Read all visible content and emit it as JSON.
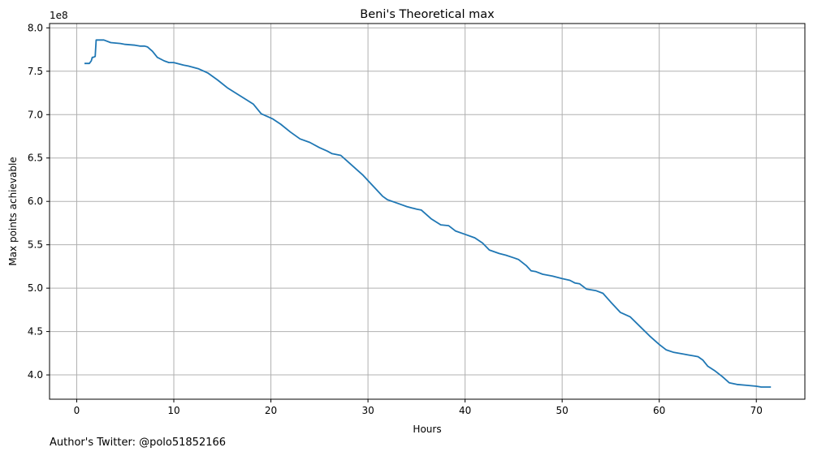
{
  "footer": {
    "author_note": "Author's Twitter: @polo51852166"
  },
  "chart_data": {
    "type": "line",
    "title": "Beni's Theoretical max",
    "xlabel": "Hours",
    "ylabel": "Max points achievable",
    "y_scale_label": "1e8",
    "xlim": [
      -2.8,
      75
    ],
    "ylim": [
      3.72,
      8.05
    ],
    "grid": true,
    "x_ticks": [
      0,
      10,
      20,
      30,
      40,
      50,
      60,
      70
    ],
    "x_tick_labels": [
      "0",
      "10",
      "20",
      "30",
      "40",
      "50",
      "60",
      "70"
    ],
    "y_ticks": [
      4.0,
      4.5,
      5.0,
      5.5,
      6.0,
      6.5,
      7.0,
      7.5,
      8.0
    ],
    "y_tick_labels": [
      "4.0",
      "4.5",
      "5.0",
      "5.5",
      "6.0",
      "6.5",
      "7.0",
      "7.5",
      "8.0"
    ],
    "line_color": "#1f77b4",
    "series": [
      {
        "name": "Theoretical max",
        "x": [
          0.8,
          1.3,
          1.5,
          1.6,
          1.7,
          1.9,
          2.0,
          2.8,
          3.5,
          4.5,
          5.0,
          6.0,
          6.5,
          7.0,
          7.3,
          7.8,
          8.3,
          9.0,
          9.5,
          10.0,
          11.0,
          11.5,
          12.5,
          13.5,
          14.5,
          15.5,
          16.5,
          17.5,
          18.2,
          19.0,
          20.2,
          21.0,
          22.0,
          23.0,
          24.0,
          25.0,
          25.8,
          26.3,
          27.2,
          28.0,
          28.5,
          29.5,
          30.5,
          31.5,
          32.0,
          33.0,
          34.0,
          35.0,
          35.5,
          36.5,
          37.5,
          38.3,
          39.0,
          40.0,
          41.0,
          41.8,
          42.5,
          43.5,
          44.2,
          45.0,
          45.5,
          46.3,
          46.8,
          47.3,
          48.0,
          49.0,
          50.0,
          50.8,
          51.3,
          51.8,
          52.5,
          53.5,
          54.2,
          55.0,
          56.0,
          57.0,
          58.0,
          59.0,
          60.0,
          60.7,
          61.5,
          62.5,
          63.0,
          63.5,
          64.0,
          64.5,
          65.0,
          65.7,
          66.5,
          67.2,
          68.0,
          69.0,
          70.0,
          70.5,
          71.5
        ],
        "values": [
          7.59,
          7.59,
          7.62,
          7.66,
          7.66,
          7.67,
          7.86,
          7.86,
          7.83,
          7.82,
          7.81,
          7.8,
          7.79,
          7.79,
          7.78,
          7.73,
          7.66,
          7.62,
          7.6,
          7.6,
          7.57,
          7.56,
          7.53,
          7.48,
          7.4,
          7.31,
          7.24,
          7.17,
          7.12,
          7.01,
          6.95,
          6.89,
          6.8,
          6.72,
          6.68,
          6.62,
          6.58,
          6.55,
          6.53,
          6.45,
          6.4,
          6.3,
          6.18,
          6.06,
          6.02,
          5.98,
          5.94,
          5.91,
          5.9,
          5.8,
          5.73,
          5.72,
          5.66,
          5.62,
          5.58,
          5.52,
          5.44,
          5.4,
          5.38,
          5.35,
          5.33,
          5.26,
          5.2,
          5.19,
          5.16,
          5.14,
          5.11,
          5.09,
          5.06,
          5.05,
          4.99,
          4.97,
          4.94,
          4.84,
          4.72,
          4.67,
          4.56,
          4.45,
          4.35,
          4.29,
          4.26,
          4.24,
          4.23,
          4.22,
          4.21,
          4.17,
          4.1,
          4.05,
          3.98,
          3.91,
          3.89,
          3.88,
          3.87,
          3.86,
          3.86
        ]
      }
    ]
  }
}
